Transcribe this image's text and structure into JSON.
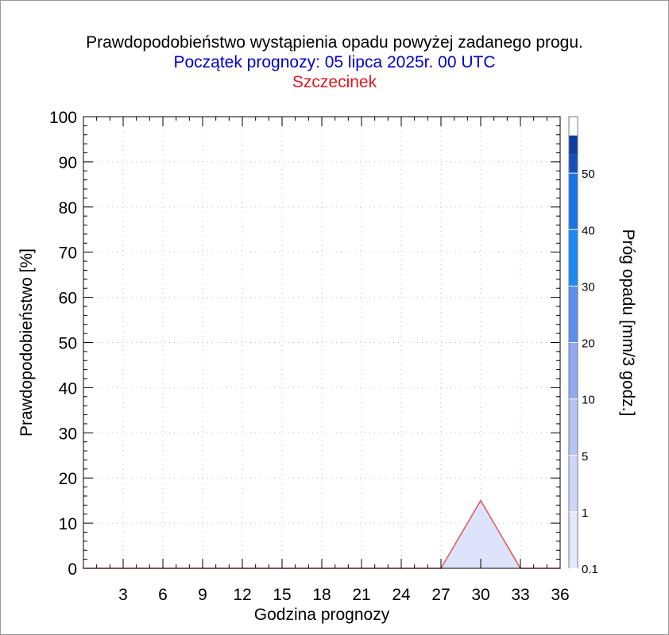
{
  "chart_data": {
    "type": "area",
    "title": "Prawdopodobieństwo wystąpienia opadu powyżej zadanego progu.",
    "subtitle": "Początek prognozy: 05 lipca 2025r. 00 UTC",
    "location": "Szczecinek",
    "xlabel": "Godzina prognozy",
    "ylabel": "Prawdopodobieństwo [%]",
    "colorbar_label": "Próg opadu [mm/3 godz.]",
    "xlim": [
      0,
      36
    ],
    "ylim": [
      0,
      100
    ],
    "x_ticks": [
      3,
      6,
      9,
      12,
      15,
      18,
      21,
      24,
      27,
      30,
      33,
      36
    ],
    "y_ticks": [
      0,
      10,
      20,
      30,
      40,
      50,
      60,
      70,
      80,
      90,
      100
    ],
    "grid": true,
    "series": [
      {
        "threshold": 0.1,
        "color": "#dde3fb",
        "line_color": "#e05555",
        "x": [
          0,
          3,
          6,
          9,
          12,
          15,
          18,
          21,
          24,
          27,
          30,
          33,
          36
        ],
        "values": [
          0,
          0,
          0,
          0,
          0,
          0,
          0,
          0,
          0,
          0,
          15,
          0,
          0
        ]
      }
    ],
    "colorbar": {
      "labels": [
        "0.1",
        "1",
        "5",
        "10",
        "20",
        "30",
        "40",
        "50"
      ],
      "colors": [
        "#e3e8fb",
        "#cdd6f8",
        "#b4c4f5",
        "#8ea9f0",
        "#5b8ff0",
        "#1a8af5",
        "#1a73e8",
        "#1762cf",
        "#1450b8",
        "#0d3fa0"
      ]
    }
  }
}
